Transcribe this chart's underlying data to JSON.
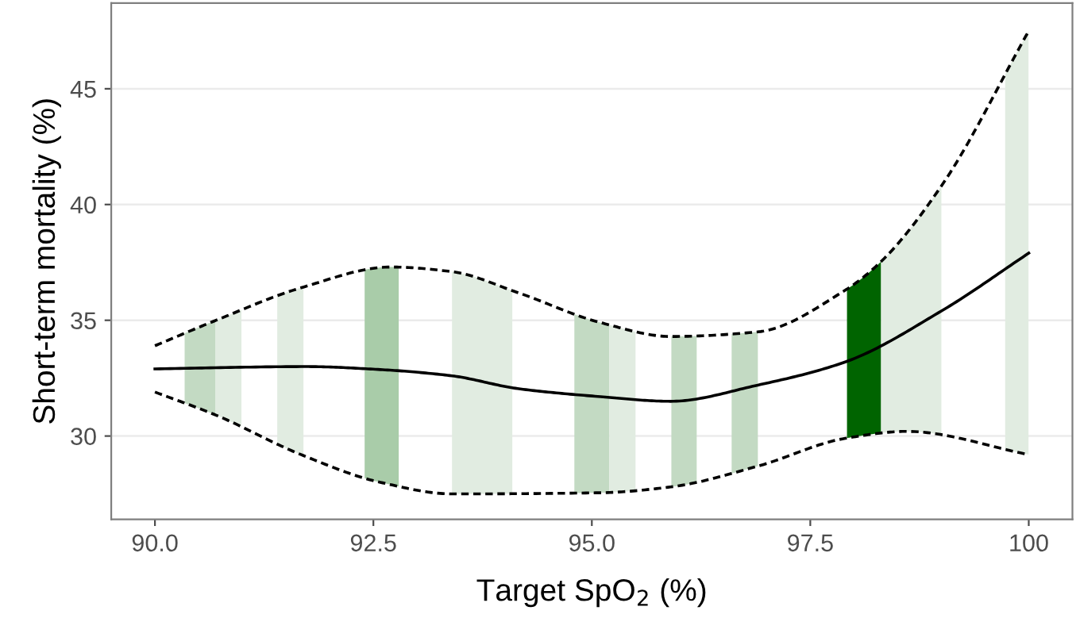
{
  "chart_data": {
    "type": "line",
    "xlabel": "Target SpO$_{2}$ (%)",
    "ylabel": "Short-term mortality (%)",
    "xlim": [
      89.5,
      100.5
    ],
    "ylim": [
      26.4,
      48.7
    ],
    "xticks": [
      {
        "value": 90,
        "label": "90.0"
      },
      {
        "value": 92.5,
        "label": "92.5"
      },
      {
        "value": 95,
        "label": "95.0"
      },
      {
        "value": 97.5,
        "label": "97.5"
      },
      100
    ],
    "yticks": [
      30,
      35,
      40,
      45
    ],
    "grid": "y",
    "series": [
      {
        "color": "#000000",
        "line_style": "solid",
        "x": [
          90,
          91.73,
          92.58,
          93.4,
          94.15,
          95.1,
          95.9,
          96.9,
          97.9,
          99.0,
          100
        ],
        "values": [
          32.9,
          33.0,
          32.87,
          32.6,
          32.05,
          31.7,
          31.5,
          32.2,
          33.2,
          35.4,
          37.9
        ]
      },
      {
        "color": "#000000",
        "line_style": "dashed",
        "x": [
          90,
          90.7,
          91.67,
          92.7,
          93.4,
          94.15,
          95.1,
          95.9,
          96.9,
          97.9,
          98.3,
          99.0,
          100
        ],
        "values": [
          33.9,
          35.0,
          36.4,
          37.3,
          37.1,
          36.2,
          34.9,
          34.3,
          34.5,
          36.3,
          37.5,
          40.8,
          47.5
        ]
      },
      {
        "color": "#000000",
        "line_style": "dashed",
        "x": [
          90,
          90.7,
          91.67,
          92.58,
          93.4,
          95.1,
          95.9,
          96.9,
          97.9,
          98.6,
          100
        ],
        "values": [
          31.9,
          30.9,
          29.2,
          28.0,
          27.5,
          27.55,
          27.8,
          28.7,
          29.9,
          30.2,
          29.2
        ]
      }
    ],
    "bands": [
      {
        "axis": "x",
        "from": 90.34,
        "to": 90.69,
        "color": "#c3dac3"
      },
      {
        "axis": "x",
        "from": 90.69,
        "to": 90.99,
        "color": "#e1ece1"
      },
      {
        "axis": "x",
        "from": 91.4,
        "to": 91.7,
        "color": "#e1ece1"
      },
      {
        "axis": "x",
        "from": 92.4,
        "to": 92.79,
        "color": "#a9cca9"
      },
      {
        "axis": "x",
        "from": 93.4,
        "to": 94.09,
        "color": "#e1ece1"
      },
      {
        "axis": "x",
        "from": 94.8,
        "to": 95.2,
        "color": "#c3dac3"
      },
      {
        "axis": "x",
        "from": 95.2,
        "to": 95.5,
        "color": "#e1ece1"
      },
      {
        "axis": "x",
        "from": 95.91,
        "to": 96.2,
        "color": "#c3dac3"
      },
      {
        "axis": "x",
        "from": 96.6,
        "to": 96.9,
        "color": "#c3dac3"
      },
      {
        "axis": "x",
        "from": 97.92,
        "to": 98.31,
        "color": "#006400"
      },
      {
        "axis": "x",
        "from": 98.31,
        "to": 99.0,
        "color": "#e1ece1"
      },
      {
        "axis": "x",
        "from": 99.73,
        "to": 100.0,
        "color": "#e1ece1"
      }
    ]
  }
}
